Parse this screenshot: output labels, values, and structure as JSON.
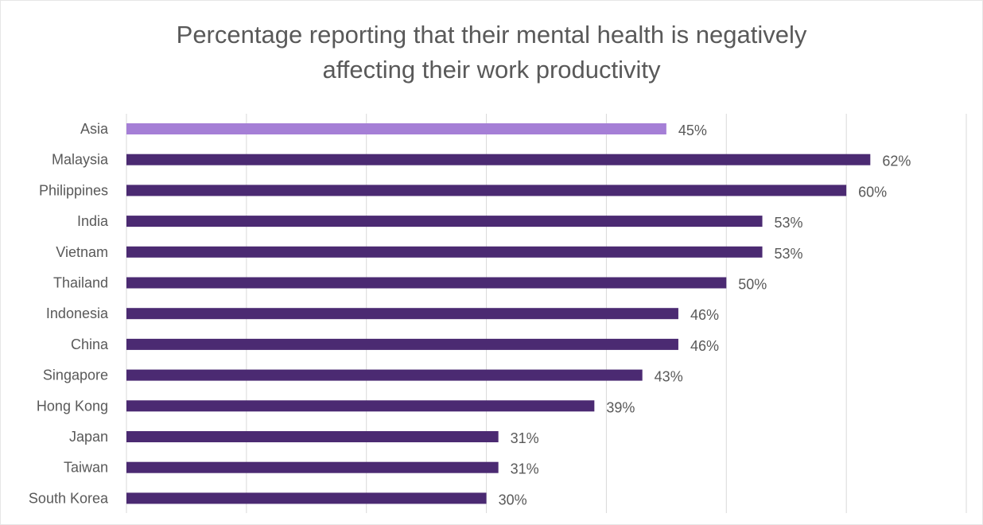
{
  "chart_data": {
    "type": "bar",
    "orientation": "horizontal",
    "title_lines": [
      "Percentage reporting that their mental health is negatively",
      "affecting their work productivity"
    ],
    "categories": [
      "Asia",
      "Malaysia",
      "Philippines",
      "India",
      "Vietnam",
      "Thailand",
      "Indonesia",
      "China",
      "Singapore",
      "Hong Kong",
      "Japan",
      "Taiwan",
      "South Korea"
    ],
    "values": [
      45,
      62,
      60,
      53,
      53,
      50,
      46,
      46,
      43,
      39,
      31,
      31,
      30
    ],
    "data_labels": [
      "45%",
      "62%",
      "60%",
      "53%",
      "53%",
      "50%",
      "46%",
      "46%",
      "43%",
      "39%",
      "31%",
      "31%",
      "30%"
    ],
    "highlight_category": "Asia",
    "xlim": [
      0,
      70
    ],
    "x_gridline_step": 10,
    "grid": true,
    "xlabel": "",
    "ylabel": "",
    "colors": {
      "highlight": "#a57fd6",
      "bar": "#4b2a72",
      "grid": "#d9d9d9",
      "text": "#595959"
    }
  }
}
